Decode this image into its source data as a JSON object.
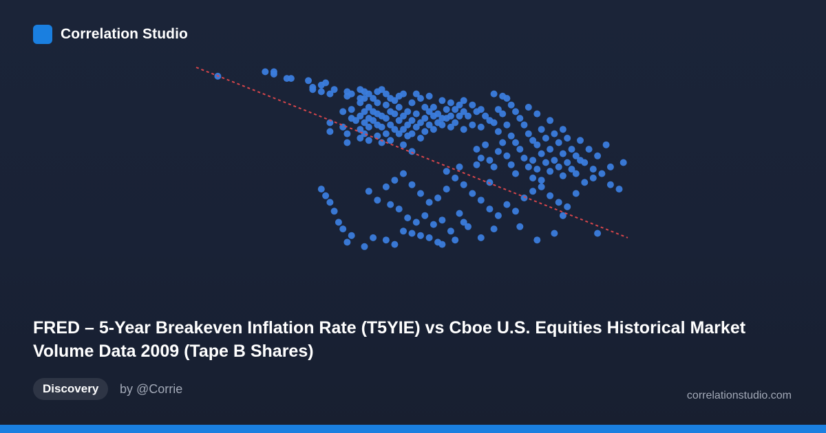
{
  "brand": {
    "name": "Correlation Studio",
    "accent_color": "#1a7fe0"
  },
  "title": "FRED – 5-Year Breakeven Inflation Rate (T5YIE) vs Cboe U.S. Equities Historical Market Volume Data 2009 (Tape B Shares)",
  "badge": {
    "label": "Discovery"
  },
  "byline": "by @Corrie",
  "site": "correlationstudio.com",
  "colors": {
    "background": "#1b2438",
    "point": "#3b7ddd",
    "trendline": "#d9464b",
    "muted_text": "#a3aab8"
  },
  "chart_data": {
    "type": "scatter",
    "title": "",
    "xlabel": "",
    "ylabel": "",
    "axes_visible": false,
    "grid": false,
    "legend": "none",
    "xlim": [
      0,
      100
    ],
    "ylim": [
      0,
      100
    ],
    "trendline": {
      "style": "dashed",
      "x": [
        0,
        100
      ],
      "y": [
        100,
        23
      ]
    },
    "series": [
      {
        "points": [
          [
            5,
            96
          ],
          [
            16,
            98
          ],
          [
            18,
            98
          ],
          [
            18,
            97
          ],
          [
            21,
            95
          ],
          [
            22,
            95
          ],
          [
            26,
            94
          ],
          [
            27,
            90
          ],
          [
            27,
            91
          ],
          [
            29,
            92
          ],
          [
            29,
            89
          ],
          [
            30,
            93
          ],
          [
            31,
            88
          ],
          [
            32,
            90
          ],
          [
            31,
            71
          ],
          [
            31,
            75
          ],
          [
            34,
            80
          ],
          [
            34,
            73
          ],
          [
            35,
            89
          ],
          [
            35,
            87
          ],
          [
            35,
            70
          ],
          [
            35,
            66
          ],
          [
            36,
            88
          ],
          [
            36,
            81
          ],
          [
            36,
            77
          ],
          [
            37,
            76
          ],
          [
            38,
            86
          ],
          [
            38,
            84
          ],
          [
            38,
            90
          ],
          [
            38,
            78
          ],
          [
            38,
            72
          ],
          [
            38,
            68
          ],
          [
            39,
            89
          ],
          [
            39,
            86
          ],
          [
            39,
            80
          ],
          [
            39,
            75
          ],
          [
            39,
            70
          ],
          [
            40,
            88
          ],
          [
            40,
            82
          ],
          [
            40,
            77
          ],
          [
            40,
            73
          ],
          [
            40,
            67
          ],
          [
            41,
            86
          ],
          [
            41,
            80
          ],
          [
            41,
            76
          ],
          [
            42,
            89
          ],
          [
            42,
            84
          ],
          [
            42,
            79
          ],
          [
            42,
            74
          ],
          [
            42,
            69
          ],
          [
            43,
            90
          ],
          [
            43,
            78
          ],
          [
            43,
            73
          ],
          [
            43,
            66
          ],
          [
            44,
            88
          ],
          [
            44,
            83
          ],
          [
            44,
            77
          ],
          [
            44,
            70
          ],
          [
            45,
            86
          ],
          [
            45,
            80
          ],
          [
            45,
            74
          ],
          [
            45,
            67
          ],
          [
            46,
            85
          ],
          [
            46,
            79
          ],
          [
            46,
            72
          ],
          [
            47,
            87
          ],
          [
            47,
            82
          ],
          [
            47,
            76
          ],
          [
            47,
            70
          ],
          [
            48,
            88
          ],
          [
            48,
            78
          ],
          [
            48,
            72
          ],
          [
            48,
            65
          ],
          [
            49,
            80
          ],
          [
            49,
            74
          ],
          [
            49,
            69
          ],
          [
            50,
            84
          ],
          [
            50,
            76
          ],
          [
            50,
            70
          ],
          [
            50,
            62
          ],
          [
            51,
            88
          ],
          [
            51,
            79
          ],
          [
            51,
            73
          ],
          [
            52,
            86
          ],
          [
            52,
            75
          ],
          [
            52,
            68
          ],
          [
            53,
            82
          ],
          [
            53,
            77
          ],
          [
            53,
            71
          ],
          [
            54,
            87
          ],
          [
            54,
            80
          ],
          [
            54,
            74
          ],
          [
            55,
            82
          ],
          [
            55,
            78
          ],
          [
            55,
            72
          ],
          [
            56,
            79
          ],
          [
            56,
            75
          ],
          [
            57,
            85
          ],
          [
            57,
            77
          ],
          [
            57,
            74
          ],
          [
            58,
            81
          ],
          [
            58,
            77
          ],
          [
            58,
            53
          ],
          [
            59,
            84
          ],
          [
            59,
            78
          ],
          [
            59,
            73
          ],
          [
            60,
            81
          ],
          [
            60,
            75
          ],
          [
            61,
            83
          ],
          [
            61,
            78
          ],
          [
            61,
            55
          ],
          [
            62,
            85
          ],
          [
            62,
            80
          ],
          [
            62,
            72
          ],
          [
            63,
            78
          ],
          [
            64,
            83
          ],
          [
            64,
            74
          ],
          [
            65,
            80
          ],
          [
            65,
            63
          ],
          [
            65,
            56
          ],
          [
            66,
            81
          ],
          [
            66,
            73
          ],
          [
            66,
            59
          ],
          [
            67,
            78
          ],
          [
            67,
            65
          ],
          [
            68,
            76
          ],
          [
            68,
            58
          ],
          [
            68,
            48
          ],
          [
            69,
            88
          ],
          [
            69,
            75
          ],
          [
            69,
            55
          ],
          [
            70,
            81
          ],
          [
            70,
            71
          ],
          [
            70,
            62
          ],
          [
            71,
            87
          ],
          [
            71,
            79
          ],
          [
            71,
            66
          ],
          [
            72,
            86
          ],
          [
            72,
            74
          ],
          [
            72,
            60
          ],
          [
            73,
            83
          ],
          [
            73,
            69
          ],
          [
            73,
            56
          ],
          [
            74,
            80
          ],
          [
            74,
            66
          ],
          [
            74,
            52
          ],
          [
            75,
            77
          ],
          [
            75,
            63
          ],
          [
            76,
            74
          ],
          [
            76,
            59
          ],
          [
            77,
            82
          ],
          [
            77,
            70
          ],
          [
            77,
            55
          ],
          [
            78,
            67
          ],
          [
            78,
            58
          ],
          [
            78,
            50
          ],
          [
            79,
            79
          ],
          [
            79,
            65
          ],
          [
            79,
            54
          ],
          [
            80,
            72
          ],
          [
            80,
            61
          ],
          [
            80,
            49
          ],
          [
            81,
            68
          ],
          [
            81,
            57
          ],
          [
            82,
            76
          ],
          [
            82,
            63
          ],
          [
            82,
            53
          ],
          [
            83,
            70
          ],
          [
            83,
            58
          ],
          [
            84,
            66
          ],
          [
            84,
            55
          ],
          [
            85,
            72
          ],
          [
            85,
            61
          ],
          [
            85,
            51
          ],
          [
            86,
            68
          ],
          [
            86,
            57
          ],
          [
            87,
            63
          ],
          [
            87,
            54
          ],
          [
            88,
            60
          ],
          [
            88,
            52
          ],
          [
            89,
            67
          ],
          [
            89,
            58
          ],
          [
            90,
            57
          ],
          [
            91,
            63
          ],
          [
            92,
            54
          ],
          [
            93,
            60
          ],
          [
            95,
            65
          ],
          [
            96,
            55
          ],
          [
            93,
            25
          ],
          [
            99,
            57
          ],
          [
            83,
            25
          ],
          [
            79,
            22
          ],
          [
            69,
            27
          ],
          [
            66,
            23
          ],
          [
            62,
            30
          ],
          [
            60,
            22
          ],
          [
            57,
            20
          ],
          [
            56,
            21
          ],
          [
            54,
            23
          ],
          [
            52,
            24
          ],
          [
            50,
            25
          ],
          [
            48,
            26
          ],
          [
            46,
            20
          ],
          [
            44,
            22
          ],
          [
            41,
            23
          ],
          [
            39,
            19
          ],
          [
            36,
            24
          ],
          [
            35,
            21
          ],
          [
            34,
            27
          ],
          [
            33,
            30
          ],
          [
            32,
            35
          ],
          [
            31,
            39
          ],
          [
            30,
            42
          ],
          [
            29,
            45
          ],
          [
            45,
            38
          ],
          [
            47,
            36
          ],
          [
            49,
            32
          ],
          [
            51,
            30
          ],
          [
            53,
            33
          ],
          [
            55,
            29
          ],
          [
            57,
            31
          ],
          [
            59,
            26
          ],
          [
            61,
            34
          ],
          [
            63,
            28
          ],
          [
            40,
            44
          ],
          [
            42,
            40
          ],
          [
            44,
            46
          ],
          [
            46,
            49
          ],
          [
            48,
            52
          ],
          [
            50,
            47
          ],
          [
            52,
            43
          ],
          [
            54,
            39
          ],
          [
            56,
            41
          ],
          [
            58,
            45
          ],
          [
            60,
            50
          ],
          [
            62,
            47
          ],
          [
            64,
            43
          ],
          [
            66,
            40
          ],
          [
            68,
            36
          ],
          [
            70,
            33
          ],
          [
            72,
            38
          ],
          [
            74,
            35
          ],
          [
            76,
            41
          ],
          [
            78,
            44
          ],
          [
            80,
            46
          ],
          [
            82,
            42
          ],
          [
            84,
            39
          ],
          [
            86,
            37
          ],
          [
            88,
            43
          ],
          [
            90,
            48
          ],
          [
            92,
            50
          ],
          [
            94,
            52
          ],
          [
            96,
            47
          ],
          [
            98,
            45
          ],
          [
            85,
            33
          ],
          [
            75,
            28
          ]
        ]
      }
    ]
  }
}
